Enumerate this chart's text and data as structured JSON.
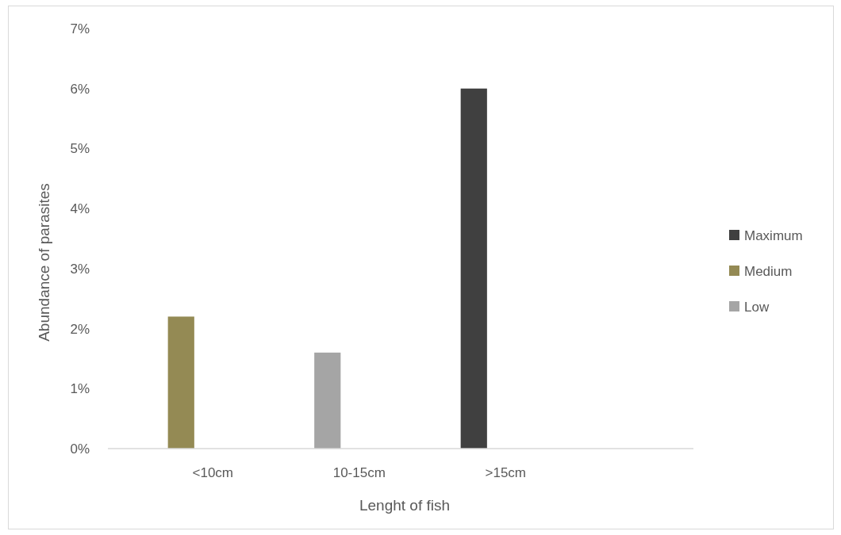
{
  "chart_data": {
    "type": "bar",
    "xlabel": "Lenght of fish",
    "ylabel": "Abundance of parasites",
    "categories": [
      "<10cm",
      "10-15cm",
      ">15cm",
      null
    ],
    "series": [
      {
        "name": "Maximum",
        "color": "#404040",
        "values": [
          null,
          null,
          6,
          null
        ]
      },
      {
        "name": "Medium",
        "color": "#948a54",
        "values": [
          2.2,
          null,
          null,
          null
        ]
      },
      {
        "name": "Low",
        "color": "#a5a5a5",
        "values": [
          null,
          1.6,
          null,
          null
        ]
      }
    ],
    "stacked": true,
    "ylim": [
      0,
      7
    ],
    "yticks": [
      {
        "value": 0,
        "label": "0%"
      },
      {
        "value": 1,
        "label": "1%"
      },
      {
        "value": 2,
        "label": "2%"
      },
      {
        "value": 3,
        "label": "3%"
      },
      {
        "value": 4,
        "label": "4%"
      },
      {
        "value": 5,
        "label": "5%"
      },
      {
        "value": 6,
        "label": "6%"
      },
      {
        "value": 7,
        "label": "7%"
      }
    ],
    "grid": false,
    "legend": "right"
  }
}
